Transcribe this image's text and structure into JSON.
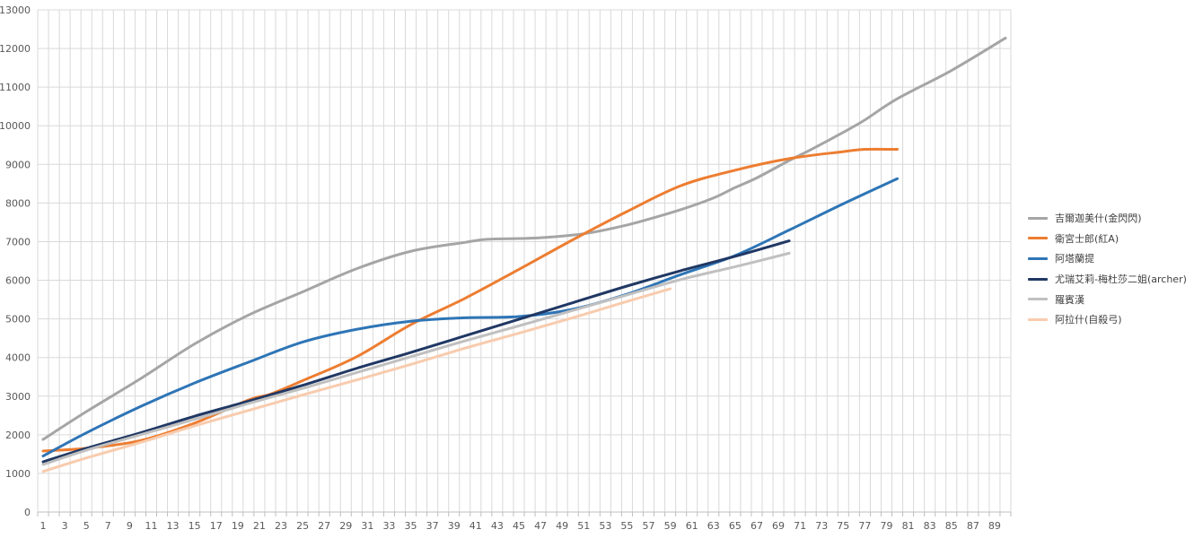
{
  "chart_data": {
    "type": "line",
    "title": "",
    "xlabel": "",
    "ylabel": "",
    "xlim": [
      1,
      90
    ],
    "ylim": [
      0,
      13000
    ],
    "y_ticks": [
      0,
      1000,
      2000,
      3000,
      4000,
      5000,
      6000,
      7000,
      8000,
      9000,
      10000,
      11000,
      12000,
      13000
    ],
    "x_tick_labels": [
      1,
      3,
      5,
      7,
      9,
      11,
      13,
      15,
      17,
      19,
      21,
      23,
      25,
      27,
      29,
      31,
      33,
      35,
      37,
      39,
      41,
      43,
      45,
      47,
      49,
      51,
      53,
      55,
      57,
      59,
      61,
      63,
      65,
      67,
      69,
      71,
      73,
      75,
      77,
      79,
      81,
      83,
      85,
      87,
      89
    ],
    "grid": true,
    "legend_position": "right",
    "series": [
      {
        "name": "吉爾迦美什(金閃閃)",
        "color": "#a5a5a5",
        "x": [
          1,
          5,
          10,
          15,
          20,
          25,
          30,
          35,
          40,
          42,
          45,
          47,
          50,
          52,
          55,
          57,
          60,
          63,
          65,
          67,
          70,
          72,
          75,
          77,
          80,
          85,
          90
        ],
        "values": [
          1880,
          2600,
          3450,
          4350,
          5100,
          5700,
          6300,
          6750,
          6980,
          7060,
          7080,
          7100,
          7170,
          7250,
          7430,
          7580,
          7830,
          8130,
          8400,
          8650,
          9100,
          9380,
          9830,
          10150,
          10700,
          11430,
          12270
        ]
      },
      {
        "name": "衛宮士郎(紅A)",
        "color": "#ed7d31",
        "x": [
          1,
          5,
          10,
          15,
          20,
          22,
          25,
          30,
          35,
          40,
          45,
          50,
          55,
          60,
          65,
          70,
          75,
          77,
          80
        ],
        "values": [
          1580,
          1650,
          1850,
          2300,
          2900,
          3050,
          3400,
          4020,
          4850,
          5530,
          6280,
          7050,
          7780,
          8450,
          8850,
          9150,
          9330,
          9390,
          9390
        ]
      },
      {
        "name": "阿塔蘭提",
        "color": "#2e75b6",
        "x": [
          1,
          5,
          10,
          15,
          20,
          25,
          30,
          35,
          40,
          45,
          50,
          55,
          60,
          65,
          70,
          75,
          80
        ],
        "values": [
          1450,
          2050,
          2730,
          3340,
          3880,
          4400,
          4730,
          4940,
          5030,
          5060,
          5250,
          5640,
          6150,
          6640,
          7300,
          7980,
          8630
        ]
      },
      {
        "name": "尤瑞艾莉-梅杜莎二姐(archer)",
        "color": "#203864",
        "x": [
          1,
          5,
          10,
          15,
          20,
          25,
          30,
          35,
          40,
          45,
          50,
          55,
          60,
          65,
          70
        ],
        "values": [
          1300,
          1650,
          2050,
          2480,
          2870,
          3280,
          3720,
          4130,
          4560,
          4990,
          5420,
          5850,
          6250,
          6620,
          7020
        ]
      },
      {
        "name": "羅賓漢",
        "color": "#c0c0c0",
        "x": [
          1,
          5,
          10,
          15,
          20,
          25,
          30,
          35,
          40,
          45,
          50,
          55,
          60,
          65,
          70
        ],
        "values": [
          1230,
          1600,
          2000,
          2400,
          2810,
          3200,
          3610,
          4020,
          4430,
          4820,
          5220,
          5620,
          6020,
          6350,
          6700
        ]
      },
      {
        "name": "阿拉什(自殺弓)",
        "color": "#f8cbad",
        "x": [
          1,
          5,
          10,
          15,
          20,
          25,
          30,
          35,
          40,
          45,
          50,
          55,
          59
        ],
        "values": [
          1050,
          1400,
          1800,
          2230,
          2630,
          3030,
          3420,
          3820,
          4240,
          4630,
          5030,
          5450,
          5780
        ]
      }
    ]
  }
}
